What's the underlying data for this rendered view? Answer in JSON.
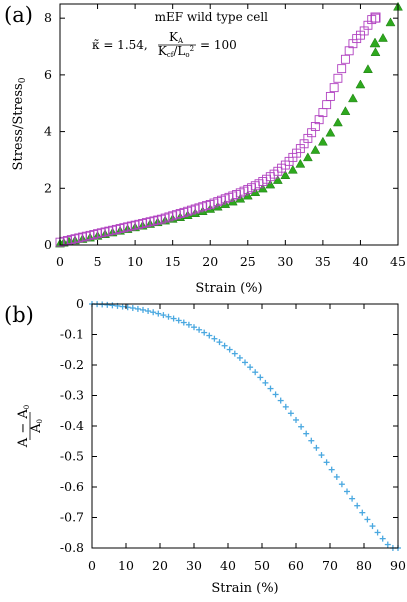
{
  "chart_data": [
    {
      "type": "scatter",
      "panel_label": "(a)",
      "xlabel": "Strain (%)",
      "ylabel": "Stress/Stress",
      "ylabel_sub": "0",
      "xlim": [
        0,
        45
      ],
      "ylim": [
        0,
        8.5
      ],
      "xticks": [
        "0",
        "5",
        "10",
        "15",
        "20",
        "25",
        "30",
        "35",
        "40",
        "45"
      ],
      "yticks": [
        "0",
        "2",
        "4",
        "6",
        "8"
      ],
      "grid": false,
      "legend_position": "top-left",
      "series": [
        {
          "name": "mEF wild type cell",
          "marker": "open-square",
          "color": "#b040c0",
          "x": [
            0.0,
            0.5,
            1.0,
            1.5,
            2.0,
            2.5,
            3.0,
            3.5,
            4.0,
            4.5,
            5.0,
            5.5,
            6.0,
            6.5,
            7.0,
            7.5,
            8.0,
            8.5,
            9.0,
            9.5,
            10.0,
            10.5,
            11.0,
            11.5,
            12.0,
            12.5,
            13.0,
            13.5,
            14.0,
            14.5,
            15.0,
            15.5,
            16.0,
            16.5,
            17.0,
            17.5,
            18.0,
            18.5,
            19.0,
            19.5,
            20.0,
            20.5,
            21.0,
            21.5,
            22.0,
            22.5,
            23.0,
            23.5,
            24.0,
            24.5,
            25.0,
            25.5,
            26.0,
            26.5,
            27.0,
            27.5,
            28.0,
            28.5,
            29.0,
            29.5,
            30.0,
            30.5,
            31.0,
            31.5,
            32.0,
            32.5,
            33.0,
            33.5,
            34.0,
            34.5,
            35.0,
            35.5,
            36.0,
            36.5,
            37.0,
            37.5,
            38.0,
            38.5,
            39.0,
            39.5,
            40.0,
            40.5,
            41.0,
            41.5,
            42.0
          ],
          "y": [
            0.1,
            0.13,
            0.16,
            0.19,
            0.22,
            0.25,
            0.28,
            0.31,
            0.34,
            0.37,
            0.4,
            0.43,
            0.46,
            0.49,
            0.52,
            0.55,
            0.58,
            0.61,
            0.64,
            0.67,
            0.7,
            0.73,
            0.76,
            0.79,
            0.82,
            0.85,
            0.88,
            0.91,
            0.95,
            0.99,
            1.03,
            1.07,
            1.11,
            1.15,
            1.19,
            1.23,
            1.27,
            1.31,
            1.35,
            1.39,
            1.43,
            1.48,
            1.53,
            1.58,
            1.63,
            1.68,
            1.73,
            1.78,
            1.84,
            1.9,
            1.96,
            2.02,
            2.09,
            2.16,
            2.24,
            2.32,
            2.41,
            2.5,
            2.6,
            2.71,
            2.82,
            2.95,
            3.09,
            3.24,
            3.4,
            3.57,
            3.76,
            3.96,
            4.18,
            4.42,
            4.67,
            4.95,
            5.24,
            5.55,
            5.88,
            6.22,
            6.55,
            6.85,
            7.1,
            7.28,
            7.4,
            7.55,
            7.75,
            7.95,
            8.0
          ]
        },
        {
          "name": "κ̃ = 1.54, K_A/(K_cf/L_o²) = 100",
          "legend_label": "κ̃ = 1.54,",
          "legend_fraction_num": "K",
          "legend_fraction_num_sub": "A",
          "legend_fraction_den": "K",
          "legend_fraction_den_sub": "cf",
          "legend_fraction_den_tail": "/L",
          "legend_fraction_den_tail_sub": "o",
          "legend_fraction_den_tail_sup": "2",
          "legend_value": "= 100",
          "marker": "filled-triangle",
          "color": "#2ea81e",
          "x": [
            0.0,
            0.5,
            1.2,
            2.0,
            3.0,
            4.0,
            5.0,
            6.0,
            7.0,
            8.0,
            9.0,
            10.0,
            11.0,
            12.0,
            13.0,
            14.0,
            15.0,
            16.0,
            17.0,
            18.0,
            19.0,
            20.0,
            21.0,
            22.0,
            23.0,
            24.0,
            25.0,
            26.0,
            27.0,
            28.0,
            29.0,
            30.0,
            31.0,
            32.0,
            33.0,
            34.0,
            35.0,
            36.0,
            37.0,
            38.0,
            39.0,
            40.0,
            41.0,
            42.0,
            43.0,
            44.0,
            45.0
          ],
          "y": [
            0.05,
            0.08,
            0.12,
            0.16,
            0.21,
            0.26,
            0.32,
            0.38,
            0.44,
            0.5,
            0.56,
            0.62,
            0.68,
            0.74,
            0.8,
            0.86,
            0.92,
            0.98,
            1.05,
            1.12,
            1.19,
            1.27,
            1.35,
            1.44,
            1.53,
            1.63,
            1.74,
            1.86,
            1.99,
            2.13,
            2.29,
            2.46,
            2.65,
            2.86,
            3.09,
            3.35,
            3.64,
            3.96,
            4.32,
            4.72,
            5.17,
            5.66,
            6.2,
            6.8,
            7.3,
            7.85,
            8.4
          ]
        }
      ]
    },
    {
      "type": "scatter",
      "panel_label": "(b)",
      "xlabel": "Strain (%)",
      "ylabel_num": "A − A",
      "ylabel_num_sub": "0",
      "ylabel_den": "A",
      "ylabel_den_sub": "0",
      "xlim": [
        0,
        90
      ],
      "ylim": [
        -0.8,
        0
      ],
      "xticks": [
        "0",
        "10",
        "20",
        "30",
        "40",
        "50",
        "60",
        "70",
        "80",
        "90"
      ],
      "yticks": [
        "0",
        "-0.1",
        "-0.2",
        "-0.3",
        "-0.4",
        "-0.5",
        "-0.6",
        "-0.7",
        "-0.8"
      ],
      "grid": false,
      "series": [
        {
          "marker": "plus",
          "color": "#4aa8e0",
          "x": [
            0,
            1.5,
            3,
            4.5,
            6,
            7.5,
            9,
            10.5,
            12,
            13.5,
            15,
            16.5,
            18,
            19.5,
            21,
            22.5,
            24,
            25.5,
            27,
            28.5,
            30,
            31.5,
            33,
            34.5,
            36,
            37.5,
            39,
            40.5,
            42,
            43.5,
            45,
            46.5,
            48,
            49.5,
            51,
            52.5,
            54,
            55.5,
            57,
            58.5,
            60,
            61.5,
            63,
            64.5,
            66,
            67.5,
            69,
            70.5,
            72,
            73.5,
            75,
            76.5,
            78,
            79.5,
            81,
            82.5,
            84,
            85.5,
            87,
            88.5,
            90
          ],
          "y": [
            0.0,
            -0.0006,
            -0.0015,
            -0.0028,
            -0.0044,
            -0.0063,
            -0.0084,
            -0.0107,
            -0.0132,
            -0.0161,
            -0.0194,
            -0.023,
            -0.027,
            -0.0315,
            -0.0364,
            -0.0418,
            -0.0477,
            -0.054,
            -0.0608,
            -0.0681,
            -0.076,
            -0.0845,
            -0.0937,
            -0.1034,
            -0.1138,
            -0.125,
            -0.1368,
            -0.1494,
            -0.1627,
            -0.1767,
            -0.1916,
            -0.2072,
            -0.2236,
            -0.2407,
            -0.2586,
            -0.2773,
            -0.2966,
            -0.3166,
            -0.3372,
            -0.3584,
            -0.3802,
            -0.4024,
            -0.4251,
            -0.4482,
            -0.4716,
            -0.4953,
            -0.5191,
            -0.5431,
            -0.567,
            -0.5909,
            -0.6147,
            -0.6382,
            -0.6613,
            -0.6841,
            -0.7064,
            -0.7281,
            -0.7491,
            -0.7693,
            -0.7887,
            -0.8,
            -0.8
          ]
        }
      ]
    }
  ]
}
